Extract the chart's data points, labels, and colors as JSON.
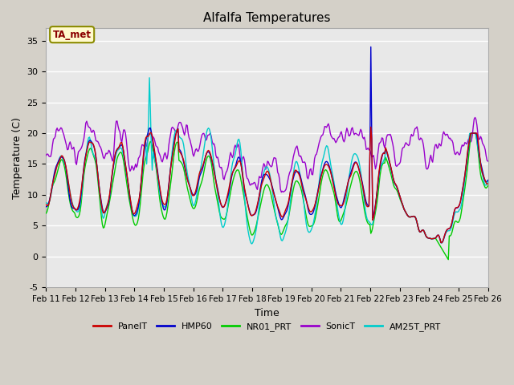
{
  "title": "Alfalfa Temperatures",
  "xlabel": "Time",
  "ylabel": "Temperature (C)",
  "ylim": [
    -5,
    37
  ],
  "yticks": [
    -5,
    0,
    5,
    10,
    15,
    20,
    25,
    30,
    35
  ],
  "annotation_text": "TA_met",
  "annotation_color": "#8B0000",
  "annotation_bg": "#FFFACD",
  "annotation_border": "#8B8B00",
  "series": {
    "PanelT": {
      "color": "#CC0000",
      "lw": 1.0
    },
    "HMP60": {
      "color": "#0000CC",
      "lw": 1.0
    },
    "NR01_PRT": {
      "color": "#00CC00",
      "lw": 1.0
    },
    "SonicT": {
      "color": "#9900CC",
      "lw": 1.0
    },
    "AM25T_PRT": {
      "color": "#00CCCC",
      "lw": 1.0
    }
  },
  "xtick_labels": [
    "Feb 11",
    "Feb 12",
    "Feb 13",
    "Feb 14",
    "Feb 15",
    "Feb 16",
    "Feb 17",
    "Feb 18",
    "Feb 19",
    "Feb 20",
    "Feb 21",
    "Feb 22",
    "Feb 23",
    "Feb 24",
    "Feb 25",
    "Feb 26"
  ],
  "n_points": 480,
  "legend_labels": [
    "PanelT",
    "HMP60",
    "NR01_PRT",
    "SonicT",
    "AM25T_PRT"
  ]
}
